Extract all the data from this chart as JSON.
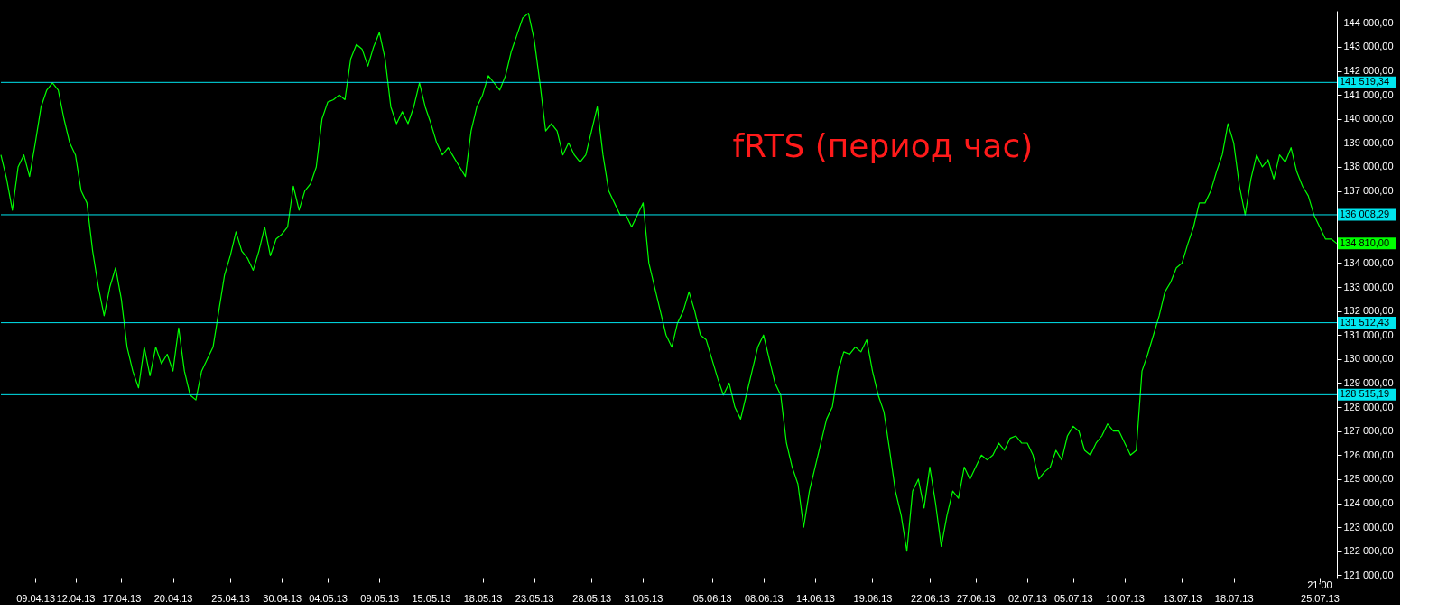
{
  "chart_data": {
    "type": "line",
    "title": "fRTS (период час)",
    "grid": false,
    "marker": "none",
    "line_style": "solid",
    "categories": [
      null,
      null,
      null,
      null,
      null,
      null,
      "09.04.13",
      null,
      null,
      null,
      null,
      null,
      null,
      "12.04.13",
      null,
      null,
      null,
      null,
      null,
      null,
      null,
      "17.04.13",
      null,
      null,
      null,
      null,
      null,
      null,
      null,
      null,
      "20.04.13",
      null,
      null,
      null,
      null,
      null,
      null,
      null,
      null,
      null,
      "25.04.13",
      null,
      null,
      null,
      null,
      null,
      null,
      null,
      null,
      "30.04.13",
      null,
      null,
      null,
      null,
      null,
      null,
      null,
      "04.05.13",
      null,
      null,
      null,
      null,
      null,
      null,
      null,
      null,
      "09.05.13",
      null,
      null,
      null,
      null,
      null,
      null,
      null,
      null,
      "15.05.13",
      null,
      null,
      null,
      null,
      null,
      null,
      null,
      null,
      "18.05.13",
      null,
      null,
      null,
      null,
      null,
      null,
      null,
      null,
      "23.05.13",
      null,
      null,
      null,
      null,
      null,
      null,
      null,
      null,
      null,
      "28.05.13",
      null,
      null,
      null,
      null,
      null,
      null,
      null,
      null,
      "31.05.13",
      null,
      null,
      null,
      null,
      null,
      null,
      null,
      null,
      null,
      null,
      null,
      "05.06.13",
      null,
      null,
      null,
      null,
      null,
      null,
      null,
      null,
      "08.06.13",
      null,
      null,
      null,
      null,
      null,
      null,
      null,
      null,
      "14.06.13",
      null,
      null,
      null,
      null,
      null,
      null,
      null,
      null,
      null,
      "19.06.13",
      null,
      null,
      null,
      null,
      null,
      null,
      null,
      null,
      null,
      "22.06.13",
      null,
      null,
      null,
      null,
      null,
      null,
      null,
      "27.06.13",
      null,
      null,
      null,
      null,
      null,
      null,
      null,
      null,
      "02.07.13",
      null,
      null,
      null,
      null,
      null,
      null,
      null,
      "05.07.13",
      null,
      null,
      null,
      null,
      null,
      null,
      null,
      null,
      "10.07.13",
      null,
      null,
      null,
      null,
      null,
      null,
      null,
      null,
      null,
      "13.07.13",
      null,
      null,
      null,
      null,
      null,
      null,
      null,
      null,
      "18.07.13",
      null,
      null,
      null,
      null,
      null,
      null,
      null,
      null,
      null,
      null,
      null,
      null,
      null,
      null,
      "25.07.13",
      null,
      null,
      null
    ],
    "series": [
      {
        "color": "#00ff00",
        "values": [
          138500,
          137500,
          136200,
          138000,
          138500,
          137600,
          139000,
          140500,
          141200,
          141500,
          141200,
          140000,
          139000,
          138500,
          137000,
          136500,
          134500,
          133000,
          131800,
          133000,
          133800,
          132500,
          130500,
          129500,
          128800,
          130500,
          129300,
          130500,
          129800,
          130200,
          129500,
          131300,
          129500,
          128500,
          128300,
          129500,
          130000,
          130500,
          132000,
          133500,
          134300,
          135300,
          134500,
          134200,
          133700,
          134500,
          135500,
          134300,
          135000,
          135200,
          135500,
          137200,
          136200,
          137000,
          137300,
          138000,
          140000,
          140700,
          140800,
          141000,
          140800,
          142500,
          143100,
          142900,
          142200,
          143000,
          143600,
          142500,
          140500,
          139800,
          140300,
          139800,
          140500,
          141500,
          140500,
          139800,
          139000,
          138500,
          138800,
          138400,
          138000,
          137600,
          139500,
          140500,
          141000,
          141800,
          141500,
          141200,
          141800,
          142800,
          143500,
          144200,
          144400,
          143300,
          141500,
          139500,
          139800,
          139500,
          138500,
          139000,
          138500,
          138200,
          138500,
          139500,
          140500,
          138500,
          137000,
          136500,
          136000,
          136000,
          135500,
          136000,
          136500,
          134000,
          133000,
          132000,
          131000,
          130500,
          131500,
          132000,
          132800,
          132000,
          131000,
          130800,
          130000,
          129200,
          128500,
          129000,
          128000,
          127500,
          128500,
          129500,
          130500,
          131000,
          130000,
          129000,
          128500,
          126500,
          125500,
          124800,
          123000,
          124500,
          125500,
          126500,
          127500,
          128000,
          129500,
          130300,
          130200,
          130500,
          130300,
          130800,
          129500,
          128500,
          127800,
          126200,
          124500,
          123500,
          122000,
          124500,
          125000,
          123800,
          125500,
          124000,
          122200,
          123500,
          124500,
          124200,
          125500,
          125000,
          125500,
          126000,
          125800,
          126000,
          126500,
          126200,
          126700,
          126800,
          126500,
          126500,
          126000,
          125000,
          125300,
          125500,
          126200,
          125800,
          126800,
          127200,
          127000,
          126200,
          126000,
          126500,
          126800,
          127300,
          127000,
          127000,
          126500,
          126000,
          126200,
          129500,
          130200,
          131000,
          131800,
          132800,
          133200,
          133800,
          134000,
          134800,
          135500,
          136500,
          136500,
          137000,
          137800,
          138500,
          139800,
          139000,
          137200,
          136000,
          137500,
          138500,
          138000,
          138300,
          137500,
          138500,
          138200,
          138800,
          137800,
          137200,
          136800,
          136000,
          135500,
          135000,
          135000,
          134810
        ]
      }
    ],
    "ylim": [
      120900,
      144500
    ],
    "yticks": [
      {
        "value": 121000,
        "label": "121 000,00"
      },
      {
        "value": 122000,
        "label": "122 000,00"
      },
      {
        "value": 123000,
        "label": "123 000,00"
      },
      {
        "value": 124000,
        "label": "124 000,00"
      },
      {
        "value": 125000,
        "label": "125 000,00"
      },
      {
        "value": 126000,
        "label": "126 000,00"
      },
      {
        "value": 127000,
        "label": "127 000,00"
      },
      {
        "value": 128000,
        "label": "128 000,00"
      },
      {
        "value": 129000,
        "label": "129 000,00"
      },
      {
        "value": 130000,
        "label": "130 000,00"
      },
      {
        "value": 131000,
        "label": "131 000,00"
      },
      {
        "value": 132000,
        "label": "132 000,00"
      },
      {
        "value": 133000,
        "label": "133 000,00"
      },
      {
        "value": 134000,
        "label": "134 000,00"
      },
      {
        "value": 137000,
        "label": "137 000,00"
      },
      {
        "value": 138000,
        "label": "138 000,00"
      },
      {
        "value": 139000,
        "label": "139 000,00"
      },
      {
        "value": 140000,
        "label": "140 000,00"
      },
      {
        "value": 141000,
        "label": "141 000,00"
      },
      {
        "value": 142000,
        "label": "142 000,00"
      },
      {
        "value": 143000,
        "label": "143 000,00"
      },
      {
        "value": 144000,
        "label": "144 000,00"
      }
    ],
    "ref_lines": [
      {
        "axis": "y",
        "value": 141519.34,
        "label": "141 519,34",
        "color": "#00e5ee"
      },
      {
        "axis": "y",
        "value": 136008.29,
        "label": "136 008,29",
        "color": "#00e5ee"
      },
      {
        "axis": "y",
        "value": 131512.43,
        "label": "131 512,43",
        "color": "#00e5ee"
      },
      {
        "axis": "y",
        "value": 128515.19,
        "label": "128 515,19",
        "color": "#00e5ee"
      }
    ],
    "annotations": [
      "134 810,00",
      "21:00"
    ]
  }
}
